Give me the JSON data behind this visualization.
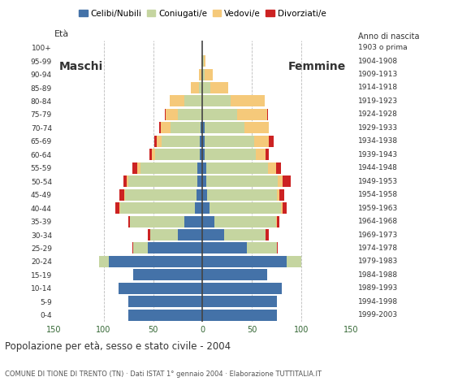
{
  "age_groups": [
    "0-4",
    "5-9",
    "10-14",
    "15-19",
    "20-24",
    "25-29",
    "30-34",
    "35-39",
    "40-44",
    "45-49",
    "50-54",
    "55-59",
    "60-64",
    "65-69",
    "70-74",
    "75-79",
    "80-84",
    "85-89",
    "90-94",
    "95-99",
    "100+"
  ],
  "birth_years": [
    "1999-2003",
    "1994-1998",
    "1989-1993",
    "1984-1988",
    "1979-1983",
    "1974-1978",
    "1969-1973",
    "1964-1968",
    "1959-1963",
    "1954-1958",
    "1949-1953",
    "1944-1948",
    "1939-1943",
    "1934-1938",
    "1929-1933",
    "1924-1928",
    "1919-1923",
    "1914-1918",
    "1909-1913",
    "1904-1908",
    "1903 o prima"
  ],
  "colors": {
    "celibe": "#4472a8",
    "coniugato": "#c5d5a0",
    "vedovo": "#f5c97a",
    "divorziato": "#cc2222"
  },
  "males": {
    "celibe": [
      75,
      75,
      85,
      70,
      95,
      55,
      25,
      18,
      8,
      6,
      5,
      5,
      3,
      3,
      2,
      0,
      0,
      0,
      0,
      0,
      0
    ],
    "coniugato": [
      0,
      0,
      0,
      0,
      10,
      15,
      28,
      55,
      75,
      72,
      70,
      58,
      45,
      38,
      30,
      25,
      18,
      4,
      1,
      0,
      0
    ],
    "vedovo": [
      0,
      0,
      0,
      0,
      0,
      0,
      0,
      0,
      1,
      1,
      2,
      3,
      3,
      5,
      10,
      12,
      15,
      8,
      3,
      1,
      0
    ],
    "divorziato": [
      0,
      0,
      0,
      0,
      0,
      1,
      2,
      2,
      4,
      5,
      3,
      5,
      3,
      3,
      2,
      1,
      0,
      0,
      0,
      0,
      0
    ]
  },
  "females": {
    "celibe": [
      75,
      75,
      80,
      65,
      85,
      45,
      22,
      12,
      7,
      5,
      4,
      4,
      2,
      2,
      2,
      0,
      0,
      0,
      0,
      0,
      0
    ],
    "coniugato": [
      0,
      0,
      0,
      0,
      15,
      30,
      42,
      62,
      72,
      70,
      72,
      62,
      52,
      50,
      40,
      35,
      28,
      8,
      2,
      1,
      0
    ],
    "vedovo": [
      0,
      0,
      0,
      0,
      0,
      0,
      0,
      1,
      2,
      3,
      5,
      8,
      10,
      15,
      25,
      30,
      35,
      18,
      8,
      2,
      0
    ],
    "divorziato": [
      0,
      0,
      0,
      0,
      0,
      1,
      3,
      3,
      4,
      5,
      8,
      5,
      3,
      5,
      0,
      1,
      0,
      0,
      0,
      0,
      0
    ]
  },
  "title": "Popolazione per età, sesso e stato civile - 2004",
  "subtitle": "COMUNE DI TIONE DI TRENTO (TN) · Dati ISTAT 1° gennaio 2004 · Elaborazione TUTTITALIA.IT",
  "xlabel_left": "Maschi",
  "xlabel_right": "Femmine",
  "ylabel_left": "Età",
  "ylabel_right": "Anno di nascita",
  "xlim": 150,
  "legend_labels": [
    "Celibi/Nubili",
    "Coniugati/e",
    "Vedovi/e",
    "Divorziati/e"
  ],
  "bg_color": "#ffffff",
  "grid_color": "#bbbbbb"
}
